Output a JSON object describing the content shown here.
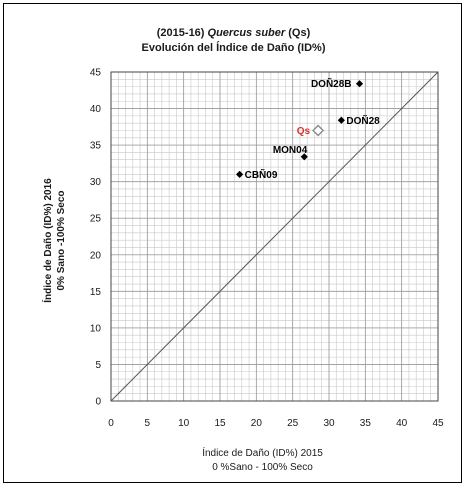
{
  "chart_data": {
    "type": "scatter",
    "title": {
      "prefix": "(2015-16) ",
      "species": "Quercus suber",
      "suffix": " (Qs)",
      "line2": "Evolución del Índice de Daño (ID%)"
    },
    "xlabel": [
      "Índice de Daño  (ID%) 2015",
      "0 %Sano - 100% Seco"
    ],
    "ylabel": [
      "Índice de Daño  (ID%) 2016",
      "0% Sano -100% Seco"
    ],
    "xlim": [
      0,
      45
    ],
    "ylim": [
      0,
      45
    ],
    "x_ticks": [
      0,
      5,
      10,
      15,
      20,
      25,
      30,
      35,
      40,
      45
    ],
    "y_ticks": [
      0,
      5,
      10,
      15,
      20,
      25,
      30,
      35,
      40,
      45
    ],
    "minor_grid_step": 1,
    "grid": true,
    "reference_line": {
      "from": [
        0,
        0
      ],
      "to": [
        45,
        45
      ]
    },
    "points": [
      {
        "label": "CBÑ09",
        "x": 17.7,
        "y": 31.0,
        "marker": "filled-diamond",
        "color": "#000000",
        "label_pos": "right"
      },
      {
        "label": "MON04",
        "x": 26.6,
        "y": 33.4,
        "marker": "filled-diamond",
        "color": "#000000",
        "label_pos": "top-left"
      },
      {
        "label": "Qs",
        "x": 28.5,
        "y": 37.0,
        "marker": "open-diamond",
        "color": "#d93030",
        "label_pos": "left"
      },
      {
        "label": "DOÑ28",
        "x": 31.7,
        "y": 38.4,
        "marker": "filled-diamond",
        "color": "#000000",
        "label_pos": "right"
      },
      {
        "label": "DOÑ28B",
        "x": 34.2,
        "y": 43.4,
        "marker": "filled-diamond",
        "color": "#000000",
        "label_pos": "left"
      }
    ]
  }
}
